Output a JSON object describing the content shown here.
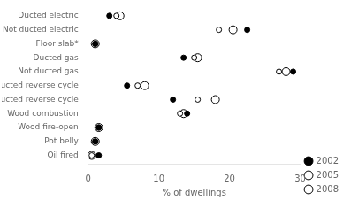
{
  "chart_data": {
    "type": "scatter",
    "orientation": "horizontal",
    "categories": [
      "Ducted electric",
      "Not ducted electric",
      "Floor slab*",
      "Ducted gas",
      "Not ducted gas",
      "Ducted reverse cycle",
      "Not ducted reverse cycle",
      "Wood combustion",
      "Wood fire-open",
      "Pot belly",
      "Oil fired"
    ],
    "series": [
      {
        "name": "2002",
        "color": "#000000",
        "marker": "filled",
        "values": [
          3.0,
          22.5,
          1.0,
          13.5,
          29.0,
          5.5,
          12.0,
          14.0,
          1.5,
          1.0,
          1.5
        ]
      },
      {
        "name": "2005",
        "color": "#000000",
        "marker": "open",
        "values": [
          4.0,
          18.5,
          1.0,
          15.0,
          27.0,
          7.0,
          15.5,
          13.0,
          1.5,
          1.0,
          0.5
        ]
      },
      {
        "name": "2008",
        "color": "#000000",
        "marker": "open",
        "values": [
          4.5,
          20.5,
          1.0,
          15.5,
          28.0,
          8.0,
          18.0,
          13.5,
          1.5,
          1.0,
          0.5
        ]
      }
    ],
    "xlabel": "% of dwellings",
    "xlim": [
      0,
      30
    ],
    "xticks": [
      0,
      10,
      20,
      30
    ],
    "grid": false,
    "legend": "lower right"
  }
}
